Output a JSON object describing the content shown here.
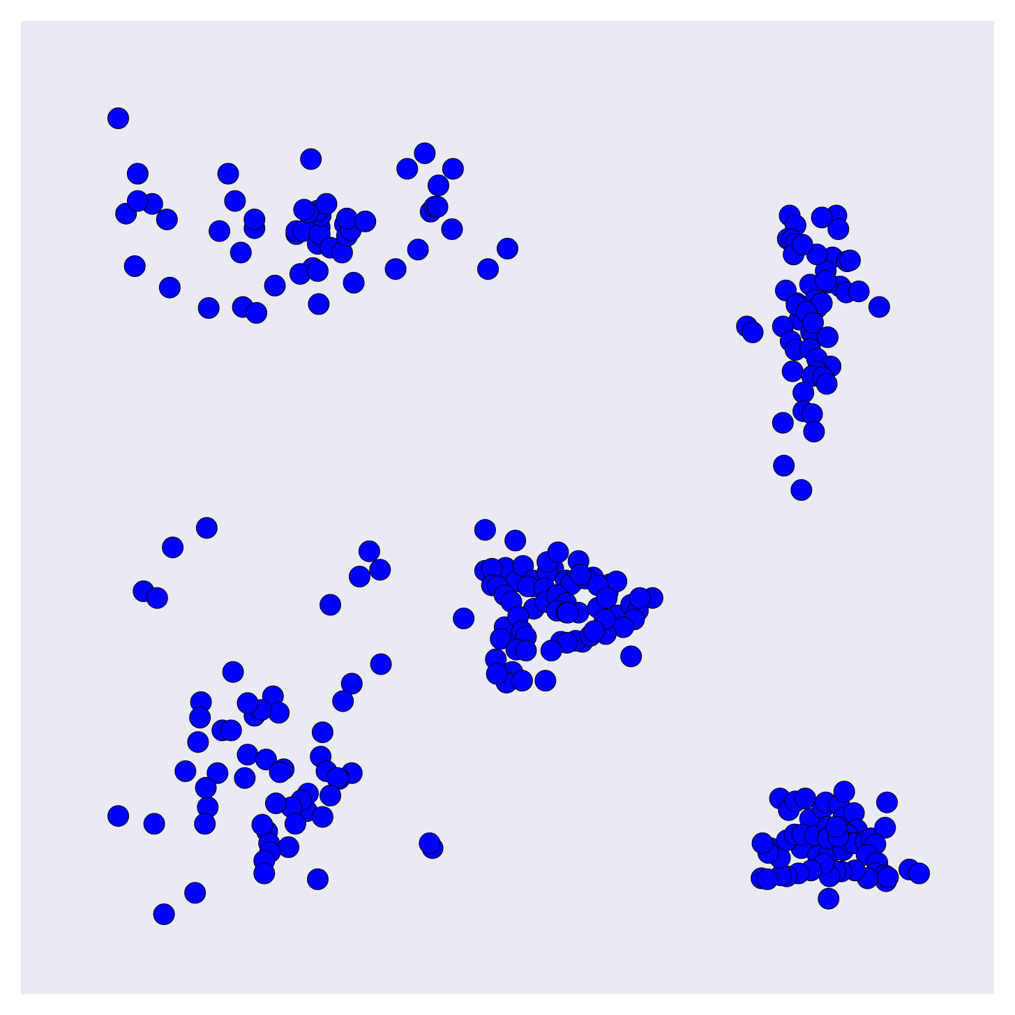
{
  "chart_data": {
    "type": "scatter",
    "title": "",
    "xlabel": "",
    "ylabel": "",
    "grid": false,
    "legend": "none",
    "axis_ticks_visible": false,
    "background_color": "#eaeaf2",
    "marker_color": "#0000ff",
    "marker_edge_color": "#000000",
    "xlim": [
      0,
      1
    ],
    "ylim": [
      0,
      1
    ],
    "series": [
      {
        "points": [
          [
            0.1,
            0.9
          ],
          [
            0.12,
            0.843
          ],
          [
            0.117,
            0.748
          ],
          [
            0.108,
            0.802
          ],
          [
            0.135,
            0.812
          ],
          [
            0.12,
            0.815
          ],
          [
            0.153,
            0.726
          ],
          [
            0.15,
            0.796
          ],
          [
            0.193,
            0.705
          ],
          [
            0.204,
            0.784
          ],
          [
            0.213,
            0.843
          ],
          [
            0.22,
            0.815
          ],
          [
            0.226,
            0.762
          ],
          [
            0.228,
            0.706
          ],
          [
            0.24,
            0.787
          ],
          [
            0.24,
            0.796
          ],
          [
            0.242,
            0.7
          ],
          [
            0.261,
            0.728
          ],
          [
            0.283,
            0.781
          ],
          [
            0.283,
            0.784
          ],
          [
            0.29,
            0.784
          ],
          [
            0.298,
            0.858
          ],
          [
            0.3,
            0.746
          ],
          [
            0.287,
            0.74
          ],
          [
            0.305,
            0.771
          ],
          [
            0.307,
            0.788
          ],
          [
            0.307,
            0.781
          ],
          [
            0.308,
            0.8
          ],
          [
            0.305,
            0.805
          ],
          [
            0.314,
            0.812
          ],
          [
            0.305,
            0.743
          ],
          [
            0.306,
            0.709
          ],
          [
            0.318,
            0.767
          ],
          [
            0.33,
            0.762
          ],
          [
            0.333,
            0.791
          ],
          [
            0.335,
            0.779
          ],
          [
            0.339,
            0.785
          ],
          [
            0.342,
            0.731
          ],
          [
            0.335,
            0.797
          ],
          [
            0.354,
            0.794
          ],
          [
            0.385,
            0.745
          ],
          [
            0.408,
            0.765
          ],
          [
            0.397,
            0.848
          ],
          [
            0.415,
            0.864
          ],
          [
            0.421,
            0.804
          ],
          [
            0.425,
            0.809
          ],
          [
            0.428,
            0.809
          ],
          [
            0.444,
            0.848
          ],
          [
            0.443,
            0.786
          ],
          [
            0.48,
            0.745
          ],
          [
            0.5,
            0.766
          ],
          [
            0.429,
            0.831
          ],
          [
            0.295,
            0.803
          ],
          [
            0.291,
            0.806
          ]
        ]
      },
      {
        "points": [
          [
            0.79,
            0.8
          ],
          [
            0.796,
            0.79
          ],
          [
            0.788,
            0.776
          ],
          [
            0.792,
            0.775
          ],
          [
            0.796,
            0.771
          ],
          [
            0.794,
            0.76
          ],
          [
            0.838,
            0.8
          ],
          [
            0.84,
            0.786
          ],
          [
            0.834,
            0.757
          ],
          [
            0.849,
            0.753
          ],
          [
            0.852,
            0.754
          ],
          [
            0.827,
            0.743
          ],
          [
            0.829,
            0.731
          ],
          [
            0.811,
            0.729
          ],
          [
            0.797,
            0.71
          ],
          [
            0.816,
            0.713
          ],
          [
            0.8,
            0.693
          ],
          [
            0.786,
            0.723
          ],
          [
            0.818,
            0.705
          ],
          [
            0.842,
            0.727
          ],
          [
            0.797,
            0.708
          ],
          [
            0.827,
            0.733
          ],
          [
            0.848,
            0.721
          ],
          [
            0.861,
            0.722
          ],
          [
            0.882,
            0.706
          ],
          [
            0.823,
            0.71
          ],
          [
            0.746,
            0.686
          ],
          [
            0.752,
            0.68
          ],
          [
            0.783,
            0.686
          ],
          [
            0.791,
            0.671
          ],
          [
            0.812,
            0.68
          ],
          [
            0.815,
            0.675
          ],
          [
            0.829,
            0.675
          ],
          [
            0.796,
            0.662
          ],
          [
            0.811,
            0.663
          ],
          [
            0.818,
            0.653
          ],
          [
            0.832,
            0.645
          ],
          [
            0.818,
            0.64
          ],
          [
            0.793,
            0.64
          ],
          [
            0.813,
            0.635
          ],
          [
            0.824,
            0.634
          ],
          [
            0.828,
            0.627
          ],
          [
            0.804,
            0.618
          ],
          [
            0.804,
            0.599
          ],
          [
            0.813,
            0.596
          ],
          [
            0.783,
            0.587
          ],
          [
            0.815,
            0.578
          ],
          [
            0.784,
            0.543
          ],
          [
            0.802,
            0.518
          ],
          [
            0.818,
            0.76
          ],
          [
            0.823,
            0.798
          ],
          [
            0.803,
            0.77
          ],
          [
            0.807,
            0.701
          ],
          [
            0.814,
            0.69
          ]
        ]
      },
      {
        "points": [
          [
            0.477,
            0.477
          ],
          [
            0.508,
            0.466
          ],
          [
            0.498,
            0.438
          ],
          [
            0.509,
            0.424
          ],
          [
            0.526,
            0.419
          ],
          [
            0.547,
            0.437
          ],
          [
            0.516,
            0.44
          ],
          [
            0.526,
            0.425
          ],
          [
            0.521,
            0.419
          ],
          [
            0.541,
            0.433
          ],
          [
            0.538,
            0.417
          ],
          [
            0.56,
            0.425
          ],
          [
            0.573,
            0.445
          ],
          [
            0.569,
            0.425
          ],
          [
            0.588,
            0.428
          ],
          [
            0.605,
            0.421
          ],
          [
            0.603,
            0.413
          ],
          [
            0.612,
            0.424
          ],
          [
            0.541,
            0.444
          ],
          [
            0.552,
            0.454
          ],
          [
            0.565,
            0.421
          ],
          [
            0.58,
            0.427
          ],
          [
            0.593,
            0.42
          ],
          [
            0.575,
            0.431
          ],
          [
            0.477,
            0.435
          ],
          [
            0.484,
            0.437
          ],
          [
            0.484,
            0.42
          ],
          [
            0.49,
            0.419
          ],
          [
            0.497,
            0.41
          ],
          [
            0.504,
            0.403
          ],
          [
            0.527,
            0.396
          ],
          [
            0.539,
            0.403
          ],
          [
            0.551,
            0.41
          ],
          [
            0.56,
            0.402
          ],
          [
            0.551,
            0.394
          ],
          [
            0.561,
            0.392
          ],
          [
            0.573,
            0.392
          ],
          [
            0.593,
            0.397
          ],
          [
            0.602,
            0.407
          ],
          [
            0.613,
            0.389
          ],
          [
            0.627,
            0.4
          ],
          [
            0.634,
            0.394
          ],
          [
            0.649,
            0.407
          ],
          [
            0.636,
            0.407
          ],
          [
            0.63,
            0.385
          ],
          [
            0.619,
            0.377
          ],
          [
            0.601,
            0.37
          ],
          [
            0.577,
            0.362
          ],
          [
            0.57,
            0.363
          ],
          [
            0.585,
            0.368
          ],
          [
            0.51,
            0.361
          ],
          [
            0.497,
            0.377
          ],
          [
            0.455,
            0.386
          ],
          [
            0.511,
            0.388
          ],
          [
            0.515,
            0.373
          ],
          [
            0.519,
            0.367
          ],
          [
            0.493,
            0.365
          ],
          [
            0.509,
            0.354
          ],
          [
            0.488,
            0.344
          ],
          [
            0.519,
            0.353
          ],
          [
            0.555,
            0.362
          ],
          [
            0.6,
            0.385
          ],
          [
            0.627,
            0.347
          ],
          [
            0.561,
            0.361
          ],
          [
            0.539,
            0.322
          ],
          [
            0.505,
            0.331
          ],
          [
            0.499,
            0.32
          ],
          [
            0.589,
            0.373
          ],
          [
            0.489,
            0.329
          ],
          [
            0.515,
            0.322
          ],
          [
            0.545,
            0.353
          ],
          [
            0.562,
            0.392
          ]
        ]
      },
      {
        "points": [
          [
            0.191,
            0.479
          ],
          [
            0.156,
            0.459
          ],
          [
            0.358,
            0.455
          ],
          [
            0.126,
            0.414
          ],
          [
            0.14,
            0.407
          ],
          [
            0.348,
            0.429
          ],
          [
            0.369,
            0.436
          ],
          [
            0.318,
            0.4
          ],
          [
            0.185,
            0.3
          ],
          [
            0.218,
            0.331
          ],
          [
            0.259,
            0.306
          ],
          [
            0.265,
            0.289
          ],
          [
            0.24,
            0.286
          ],
          [
            0.247,
            0.292
          ],
          [
            0.233,
            0.299
          ],
          [
            0.184,
            0.284
          ],
          [
            0.207,
            0.271
          ],
          [
            0.182,
            0.259
          ],
          [
            0.216,
            0.271
          ],
          [
            0.233,
            0.246
          ],
          [
            0.252,
            0.241
          ],
          [
            0.27,
            0.231
          ],
          [
            0.266,
            0.228
          ],
          [
            0.23,
            0.222
          ],
          [
            0.31,
            0.269
          ],
          [
            0.34,
            0.319
          ],
          [
            0.37,
            0.339
          ],
          [
            0.331,
            0.301
          ],
          [
            0.308,
            0.244
          ],
          [
            0.34,
            0.227
          ],
          [
            0.314,
            0.229
          ],
          [
            0.295,
            0.206
          ],
          [
            0.294,
            0.188
          ],
          [
            0.31,
            0.182
          ],
          [
            0.327,
            0.221
          ],
          [
            0.325,
            0.222
          ],
          [
            0.318,
            0.204
          ],
          [
            0.288,
            0.199
          ],
          [
            0.278,
            0.192
          ],
          [
            0.262,
            0.196
          ],
          [
            0.202,
            0.227
          ],
          [
            0.192,
            0.192
          ],
          [
            0.19,
            0.212
          ],
          [
            0.169,
            0.229
          ],
          [
            0.1,
            0.183
          ],
          [
            0.137,
            0.175
          ],
          [
            0.189,
            0.175
          ],
          [
            0.282,
            0.175
          ],
          [
            0.253,
            0.167
          ],
          [
            0.255,
            0.155
          ],
          [
            0.275,
            0.151
          ],
          [
            0.256,
            0.146
          ],
          [
            0.25,
            0.137
          ],
          [
            0.25,
            0.124
          ],
          [
            0.305,
            0.118
          ],
          [
            0.423,
            0.15
          ],
          [
            0.42,
            0.155
          ],
          [
            0.179,
            0.104
          ],
          [
            0.147,
            0.082
          ],
          [
            0.248,
            0.174
          ]
        ]
      },
      {
        "points": [
          [
            0.78,
            0.201
          ],
          [
            0.789,
            0.189
          ],
          [
            0.796,
            0.198
          ],
          [
            0.806,
            0.201
          ],
          [
            0.811,
            0.18
          ],
          [
            0.824,
            0.191
          ],
          [
            0.827,
            0.197
          ],
          [
            0.841,
            0.194
          ],
          [
            0.846,
            0.208
          ],
          [
            0.845,
            0.181
          ],
          [
            0.856,
            0.186
          ],
          [
            0.859,
            0.169
          ],
          [
            0.849,
            0.164
          ],
          [
            0.837,
            0.168
          ],
          [
            0.82,
            0.161
          ],
          [
            0.813,
            0.156
          ],
          [
            0.802,
            0.15
          ],
          [
            0.819,
            0.142
          ],
          [
            0.831,
            0.144
          ],
          [
            0.845,
            0.148
          ],
          [
            0.853,
            0.155
          ],
          [
            0.857,
            0.155
          ],
          [
            0.868,
            0.157
          ],
          [
            0.874,
            0.16
          ],
          [
            0.888,
            0.171
          ],
          [
            0.89,
            0.197
          ],
          [
            0.878,
            0.154
          ],
          [
            0.869,
            0.143
          ],
          [
            0.88,
            0.135
          ],
          [
            0.878,
            0.124
          ],
          [
            0.888,
            0.122
          ],
          [
            0.889,
            0.116
          ],
          [
            0.891,
            0.12
          ],
          [
            0.87,
            0.119
          ],
          [
            0.857,
            0.127
          ],
          [
            0.843,
            0.126
          ],
          [
            0.837,
            0.126
          ],
          [
            0.831,
            0.121
          ],
          [
            0.825,
            0.134
          ],
          [
            0.812,
            0.127
          ],
          [
            0.799,
            0.124
          ],
          [
            0.787,
            0.121
          ],
          [
            0.781,
            0.122
          ],
          [
            0.77,
            0.15
          ],
          [
            0.78,
            0.14
          ],
          [
            0.787,
            0.158
          ],
          [
            0.795,
            0.164
          ],
          [
            0.803,
            0.164
          ],
          [
            0.816,
            0.163
          ],
          [
            0.829,
            0.172
          ],
          [
            0.829,
            0.16
          ],
          [
            0.84,
            0.162
          ],
          [
            0.838,
            0.172
          ],
          [
            0.913,
            0.128
          ],
          [
            0.923,
            0.124
          ],
          [
            0.761,
            0.119
          ],
          [
            0.767,
            0.118
          ],
          [
            0.83,
            0.098
          ],
          [
            0.768,
            0.145
          ],
          [
            0.762,
            0.155
          ]
        ]
      }
    ]
  }
}
